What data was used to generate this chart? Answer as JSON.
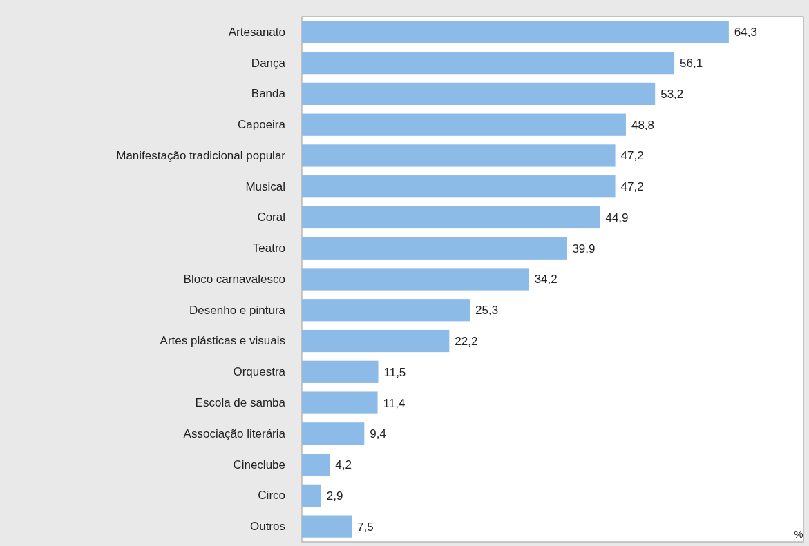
{
  "chart_data": {
    "type": "bar",
    "orientation": "horizontal",
    "annotations": [
      "%"
    ],
    "color": "#8bbbe6",
    "categories": [
      "Artesanato",
      "Dança",
      "Banda",
      "Capoeira",
      "Manifestação tradicional popular",
      "Musical",
      "Coral",
      "Teatro",
      "Bloco carnavalesco",
      "Desenho e pintura",
      "Artes plásticas e visuais",
      "Orquestra",
      "Escola de samba",
      "Associação literária",
      "Cineclube",
      "Circo",
      "Outros"
    ],
    "values": [
      64.3,
      56.1,
      53.2,
      48.8,
      47.2,
      47.2,
      44.9,
      39.9,
      34.2,
      25.3,
      22.2,
      11.5,
      11.4,
      9.4,
      4.2,
      2.9,
      7.5
    ],
    "value_labels": [
      "64,3",
      "56,1",
      "53,2",
      "48,8",
      "47,2",
      "47,2",
      "44,9",
      "39,9",
      "34,2",
      "25,3",
      "22,2",
      "11,5",
      "11,4",
      "9,4",
      "4,2",
      "2,9",
      "7,5"
    ]
  }
}
